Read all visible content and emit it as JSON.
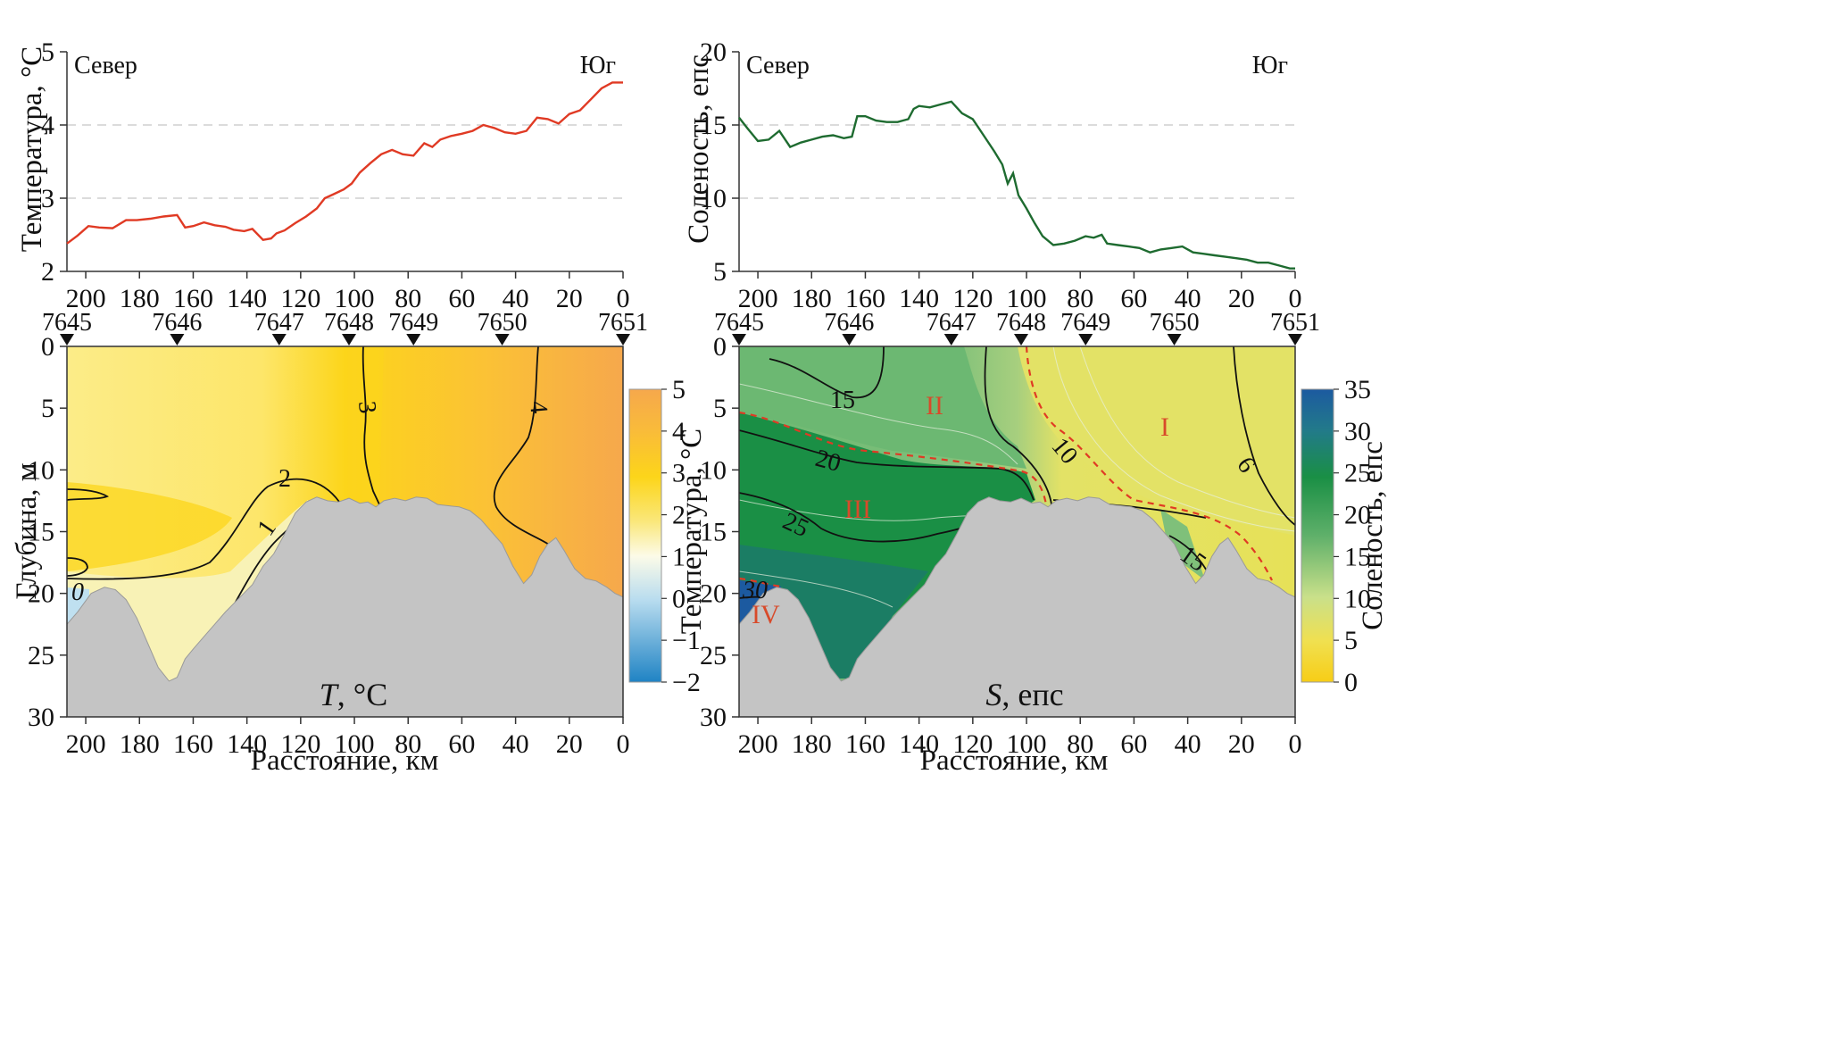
{
  "chart_data": [
    {
      "type": "line",
      "ylabel": "Температура, °С",
      "left_label": "Север",
      "right_label": "Юг",
      "xlim": [
        207,
        0
      ],
      "ylim": [
        2,
        5
      ],
      "x_ticks": [
        "200",
        "180",
        "160",
        "140",
        "120",
        "100",
        "80",
        "60",
        "40",
        "20",
        "0"
      ],
      "y_ticks": [
        "2",
        "3",
        "4",
        "5"
      ],
      "grid": "dashed horizontal",
      "series": [
        {
          "color": "#e03a24",
          "x": [
            207,
            203,
            199,
            195,
            190,
            185,
            181,
            176,
            171,
            166,
            163,
            160,
            156,
            152,
            148,
            145,
            141,
            138,
            134,
            131,
            129,
            126,
            122,
            118,
            114,
            111,
            108,
            104,
            101,
            98,
            94,
            90,
            86,
            82,
            78,
            74,
            71,
            68,
            64,
            60,
            56,
            52,
            48,
            44,
            40,
            36,
            32,
            28,
            24,
            20,
            16,
            12,
            8,
            4,
            0
          ],
          "values": [
            2.38,
            2.49,
            2.62,
            2.6,
            2.59,
            2.7,
            2.7,
            2.72,
            2.75,
            2.77,
            2.6,
            2.62,
            2.67,
            2.63,
            2.61,
            2.57,
            2.55,
            2.58,
            2.43,
            2.45,
            2.52,
            2.56,
            2.66,
            2.75,
            2.86,
            3.0,
            3.05,
            3.12,
            3.2,
            3.35,
            3.48,
            3.6,
            3.66,
            3.6,
            3.58,
            3.75,
            3.7,
            3.8,
            3.85,
            3.88,
            3.92,
            4.0,
            3.96,
            3.9,
            3.88,
            3.92,
            4.1,
            4.08,
            4.02,
            4.15,
            4.2,
            4.35,
            4.5,
            4.58,
            4.58
          ]
        }
      ]
    },
    {
      "type": "line",
      "ylabel": "Соленость, епс",
      "left_label": "Север",
      "right_label": "Юг",
      "xlim": [
        207,
        0
      ],
      "ylim": [
        5,
        20
      ],
      "x_ticks": [
        "200",
        "180",
        "160",
        "140",
        "120",
        "100",
        "80",
        "60",
        "40",
        "20",
        "0"
      ],
      "y_ticks": [
        "5",
        "10",
        "15",
        "20"
      ],
      "grid": "dashed horizontal",
      "series": [
        {
          "color": "#1e6b30",
          "x": [
            207,
            204,
            200,
            196,
            192,
            188,
            184,
            180,
            176,
            172,
            168,
            165,
            163,
            160,
            156,
            152,
            148,
            144,
            142,
            140,
            136,
            132,
            128,
            124,
            120,
            116,
            112,
            109,
            107,
            105,
            103,
            100,
            97,
            94,
            90,
            86,
            82,
            78,
            75,
            72,
            70,
            66,
            62,
            58,
            54,
            50,
            46,
            42,
            38,
            34,
            30,
            26,
            22,
            18,
            14,
            10,
            6,
            2,
            0
          ],
          "values": [
            15.5,
            14.8,
            13.9,
            14.0,
            14.6,
            13.5,
            13.8,
            14.0,
            14.2,
            14.3,
            14.1,
            14.2,
            15.6,
            15.6,
            15.3,
            15.2,
            15.2,
            15.4,
            16.1,
            16.3,
            16.2,
            16.4,
            16.6,
            15.8,
            15.4,
            14.3,
            13.2,
            12.3,
            11.0,
            11.7,
            10.2,
            9.3,
            8.3,
            7.4,
            6.8,
            6.9,
            7.1,
            7.4,
            7.3,
            7.5,
            6.9,
            6.8,
            6.7,
            6.6,
            6.3,
            6.5,
            6.6,
            6.7,
            6.3,
            6.2,
            6.1,
            6.0,
            5.9,
            5.8,
            5.6,
            5.6,
            5.4,
            5.2,
            5.2
          ]
        }
      ]
    },
    {
      "type": "heatmap",
      "title": "T, °С",
      "title_italic": "T",
      "title_rest": ", °С",
      "ylabel": "Глубина, м",
      "xlabel": "Расстояние, км",
      "xlim": [
        207,
        0
      ],
      "ylim": [
        0,
        30
      ],
      "x_ticks": [
        "200",
        "180",
        "160",
        "140",
        "120",
        "100",
        "80",
        "60",
        "40",
        "20",
        "0"
      ],
      "y_ticks": [
        "0",
        "5",
        "10",
        "15",
        "20",
        "25",
        "30"
      ],
      "stations": [
        {
          "name": "7645",
          "x": 207
        },
        {
          "name": "7646",
          "x": 166
        },
        {
          "name": "7647",
          "x": 128
        },
        {
          "name": "7648",
          "x": 102
        },
        {
          "name": "7649",
          "x": 78
        },
        {
          "name": "7650",
          "x": 45
        },
        {
          "name": "7651",
          "x": 0
        }
      ],
      "contour_labels": [
        "3",
        "4",
        "2",
        "1",
        "0"
      ],
      "colorbar": {
        "min": -2,
        "max": 5,
        "ticks": [
          "5",
          "4",
          "3",
          "2",
          "1",
          "0",
          "−1",
          "−2"
        ]
      },
      "colors": {
        "warm": "#f6a84c",
        "yellow": "#fcd51a",
        "pale": "#f8f2b6",
        "cold": "#2e8cc8",
        "bottom": "#c4c4c4"
      }
    },
    {
      "type": "heatmap",
      "title": "S, епс",
      "title_italic": "S",
      "title_rest": ", епс",
      "ylabel": "Температура, °С",
      "xlabel": "Расстояние, км",
      "xlim": [
        207,
        0
      ],
      "ylim": [
        0,
        30
      ],
      "x_ticks": [
        "200",
        "180",
        "160",
        "140",
        "120",
        "100",
        "80",
        "60",
        "40",
        "20",
        "0"
      ],
      "y_ticks": [
        "0",
        "5",
        "10",
        "15",
        "20",
        "25",
        "30"
      ],
      "stations": [
        {
          "name": "7645",
          "x": 207
        },
        {
          "name": "7646",
          "x": 166
        },
        {
          "name": "7647",
          "x": 128
        },
        {
          "name": "7648",
          "x": 102
        },
        {
          "name": "7649",
          "x": 78
        },
        {
          "name": "7650",
          "x": 45
        },
        {
          "name": "7651",
          "x": 0
        }
      ],
      "contour_labels": [
        "15",
        "20",
        "25",
        "30",
        "10",
        "6",
        "15"
      ],
      "regions": [
        "I",
        "II",
        "III",
        "IV"
      ],
      "colorbar": {
        "label": "Соленость, епс",
        "min": 0,
        "max": 35,
        "ticks": [
          "35",
          "30",
          "25",
          "20",
          "15",
          "10",
          "5",
          "0"
        ]
      },
      "colors": {
        "fresh": "#e3e266",
        "mid": "#7fc07a",
        "salt": "#1a8f45",
        "deep": "#1c6f7a",
        "region_label": "#d84a2a",
        "front": "#e03a24"
      }
    }
  ]
}
